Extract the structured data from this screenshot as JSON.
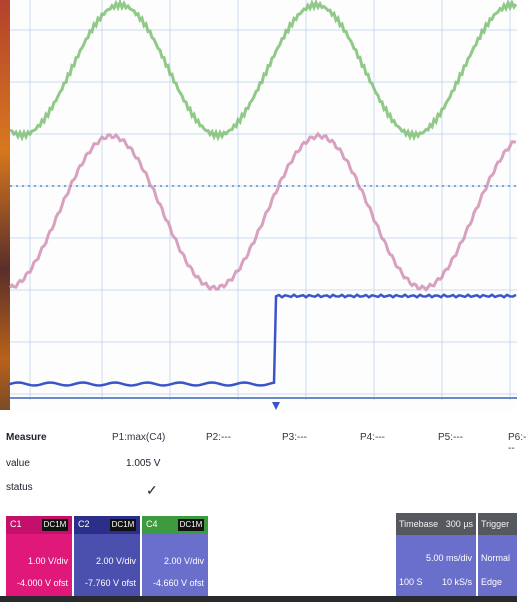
{
  "measurements": {
    "row_labels": [
      "Measure",
      "value",
      "status"
    ],
    "params": [
      "P1:max(C4)",
      "P2:---",
      "P3:---",
      "P4:---",
      "P5:---",
      "P6:---"
    ],
    "p1_value": "1.005 V",
    "status_mark": "✓"
  },
  "channels": [
    {
      "id": "C1",
      "line1": "DC1M",
      "volt_div": "1.00 V/div",
      "offset": "-4.000 V ofst",
      "color": "#e0187a"
    },
    {
      "id": "C2",
      "line1": "DC1M",
      "volt_div": "2.00 V/div",
      "offset": "-7.760 V ofst",
      "color": "#4b4fae"
    },
    {
      "id": "C4",
      "line1": "DC1M",
      "volt_div": "2.00 V/div",
      "offset": "-4.660 V ofst",
      "color": "#58a85a"
    }
  ],
  "timebase": {
    "title": "Timebase",
    "value": "300 µs",
    "sample": "5.00 ms/div",
    "rate": "100 S",
    "rate2": "10 kS/s"
  },
  "trigger": {
    "title": "Trigger",
    "mode": "Normal",
    "type": "Edge"
  },
  "colors": {
    "green_trace": "#7cbf73",
    "pink_trace": "#d08ab0",
    "blue_trace": "#3a55c8",
    "grid": "#a9c6e4"
  }
}
